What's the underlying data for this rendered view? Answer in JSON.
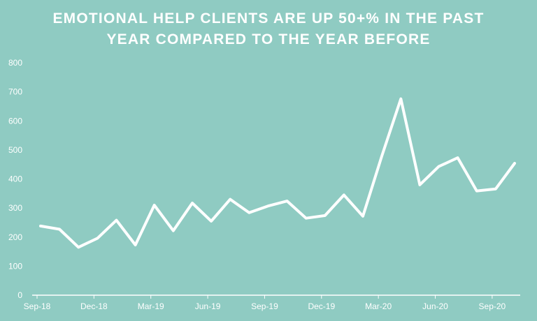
{
  "title_lines": [
    "EMOTIONAL HELP CLIENTS ARE UP 50+% IN THE PAST",
    "YEAR COMPARED TO THE YEAR BEFORE"
  ],
  "colors": {
    "background": "#8fcbc2",
    "line": "#ffffff",
    "axis": "#ffffff",
    "text": "#ffffff"
  },
  "chart_data": {
    "type": "line",
    "title": "EMOTIONAL HELP CLIENTS ARE UP 50+% IN THE PAST YEAR COMPARED TO THE YEAR BEFORE",
    "xlabel": "",
    "ylabel": "",
    "ylim": [
      0,
      800
    ],
    "yticks": [
      0,
      100,
      200,
      300,
      400,
      500,
      600,
      700,
      800
    ],
    "xtick_labels": [
      "Sep-18",
      "Dec-18",
      "Mar-19",
      "Jun-19",
      "Sep-19",
      "Dec-19",
      "Mar-20",
      "Jun-20",
      "Sep-20"
    ],
    "x": [
      "Sep-18",
      "Oct-18",
      "Nov-18",
      "Dec-18",
      "Jan-19",
      "Feb-19",
      "Mar-19",
      "Apr-19",
      "May-19",
      "Jun-19",
      "Jul-19",
      "Aug-19",
      "Sep-19",
      "Oct-19",
      "Nov-19",
      "Dec-19",
      "Jan-20",
      "Feb-20",
      "Mar-20",
      "Apr-20",
      "May-20",
      "Jun-20",
      "Jul-20",
      "Aug-20",
      "Sep-20",
      "Oct-20"
    ],
    "values": [
      238,
      227,
      165,
      196,
      258,
      173,
      310,
      222,
      317,
      255,
      330,
      284,
      307,
      324,
      265,
      274,
      345,
      272,
      480,
      676,
      380,
      443,
      473,
      359,
      366,
      454
    ],
    "grid": false,
    "legend": "none"
  }
}
